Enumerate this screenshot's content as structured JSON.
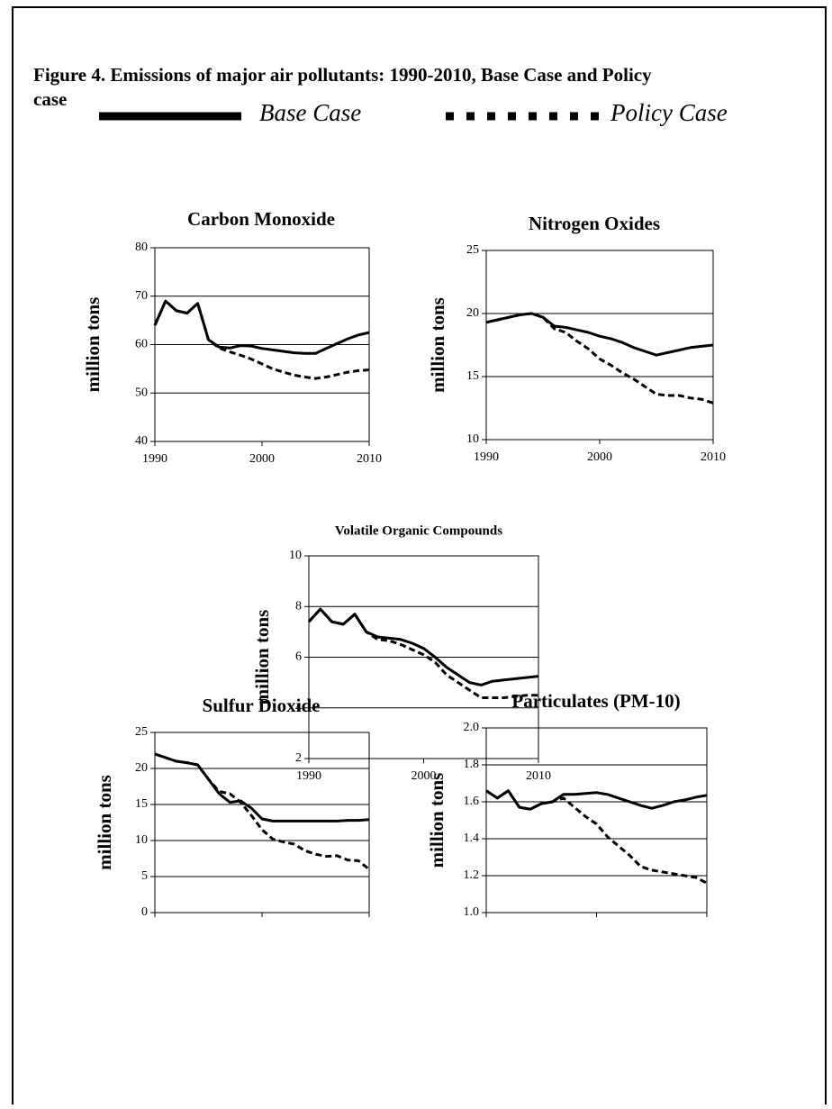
{
  "title": "Figure 4. Emissions of major air pollutants: 1990-2010, Base Case and Policy case",
  "legend": [
    {
      "name": "Base Case",
      "style": "solid"
    },
    {
      "name": "Policy Case",
      "style": "dashed"
    }
  ],
  "chart_data": [
    {
      "type": "line",
      "title": "Carbon Monoxide",
      "y_label": "million tons",
      "x": [
        1990,
        1991,
        1992,
        1993,
        1994,
        1995,
        1996,
        1997,
        1998,
        1999,
        2000,
        2001,
        2002,
        2003,
        2004,
        2005,
        2006,
        2007,
        2008,
        2009,
        2010
      ],
      "xlim": [
        1990,
        2010
      ],
      "xticks": [
        1990,
        2000,
        2010
      ],
      "ylim": [
        40,
        80
      ],
      "yticks": [
        40,
        50,
        60,
        70,
        80
      ],
      "grid": true,
      "series": [
        {
          "style": "solid",
          "values": [
            64,
            69,
            67,
            66.5,
            68.5,
            61,
            59.5,
            59.3,
            59.8,
            59.7,
            59.2,
            58.9,
            58.6,
            58.3,
            58.2,
            58.2,
            59.2,
            60.2,
            61.2,
            62,
            62.5
          ]
        },
        {
          "style": "dashed",
          "values": [
            64,
            69,
            67,
            66.5,
            68.5,
            61,
            59.3,
            58.5,
            57.8,
            57,
            56,
            55,
            54.3,
            53.7,
            53.3,
            53,
            53.3,
            53.8,
            54.3,
            54.6,
            54.8
          ]
        }
      ]
    },
    {
      "type": "line",
      "title": "Nitrogen Oxides",
      "y_label": "million tons",
      "x": [
        1990,
        1991,
        1992,
        1993,
        1994,
        1995,
        1996,
        1997,
        1998,
        1999,
        2000,
        2001,
        2002,
        2003,
        2004,
        2005,
        2006,
        2007,
        2008,
        2009,
        2010
      ],
      "xlim": [
        1990,
        2010
      ],
      "xticks": [
        1990,
        2000,
        2010
      ],
      "ylim": [
        10,
        25
      ],
      "yticks": [
        10,
        15,
        20,
        25
      ],
      "grid": true,
      "series": [
        {
          "style": "solid",
          "values": [
            19.3,
            19.5,
            19.7,
            19.9,
            20.0,
            19.7,
            19.0,
            18.9,
            18.7,
            18.5,
            18.2,
            18.0,
            17.7,
            17.3,
            17.0,
            16.7,
            16.9,
            17.1,
            17.3,
            17.4,
            17.5
          ]
        },
        {
          "style": "dashed",
          "values": [
            19.3,
            19.5,
            19.7,
            19.9,
            20.0,
            19.7,
            18.8,
            18.5,
            17.8,
            17.2,
            16.4,
            15.9,
            15.3,
            14.8,
            14.2,
            13.6,
            13.5,
            13.5,
            13.3,
            13.2,
            12.9
          ]
        }
      ]
    },
    {
      "type": "line",
      "title": "Volatile Organic Compounds",
      "y_label": "million tons",
      "x": [
        1990,
        1991,
        1992,
        1993,
        1994,
        1995,
        1996,
        1997,
        1998,
        1999,
        2000,
        2001,
        2002,
        2003,
        2004,
        2005,
        2006,
        2007,
        2008,
        2009,
        2010
      ],
      "xlim": [
        1990,
        2010
      ],
      "xticks": [
        1990,
        2000,
        2010
      ],
      "ylim": [
        2,
        10
      ],
      "yticks": [
        2,
        4,
        6,
        8,
        10
      ],
      "grid": true,
      "series": [
        {
          "style": "solid",
          "values": [
            7.4,
            7.9,
            7.4,
            7.3,
            7.7,
            7.0,
            6.8,
            6.75,
            6.7,
            6.55,
            6.35,
            6.0,
            5.6,
            5.3,
            5.0,
            4.9,
            5.05,
            5.1,
            5.15,
            5.2,
            5.25
          ]
        },
        {
          "style": "dashed",
          "values": [
            7.4,
            7.9,
            7.4,
            7.3,
            7.7,
            7.0,
            6.7,
            6.65,
            6.5,
            6.3,
            6.1,
            5.8,
            5.3,
            5.0,
            4.7,
            4.4,
            4.4,
            4.4,
            4.45,
            4.5,
            4.5
          ]
        }
      ]
    },
    {
      "type": "line",
      "title": "Sulfur Dioxide",
      "y_label": "million tons",
      "x": [
        1990,
        1991,
        1992,
        1993,
        1994,
        1995,
        1996,
        1997,
        1998,
        1999,
        2000,
        2001,
        2002,
        2003,
        2004,
        2005,
        2006,
        2007,
        2008,
        2009,
        2010
      ],
      "xlim": [
        1990,
        2010
      ],
      "ylim": [
        0,
        25
      ],
      "yticks": [
        0,
        5,
        10,
        15,
        20,
        25
      ],
      "grid": true,
      "series": [
        {
          "style": "solid",
          "values": [
            22,
            21.5,
            21.0,
            20.8,
            20.5,
            18.5,
            16.5,
            15.3,
            15.5,
            14.5,
            13.0,
            12.7,
            12.7,
            12.7,
            12.7,
            12.7,
            12.7,
            12.7,
            12.8,
            12.8,
            12.9
          ]
        },
        {
          "style": "dashed",
          "values": [
            22,
            21.5,
            21.0,
            20.8,
            20.5,
            18.5,
            16.8,
            16.5,
            15.3,
            13.5,
            11.5,
            10.2,
            9.8,
            9.5,
            8.6,
            8.1,
            7.8,
            7.9,
            7.3,
            7.2,
            6.0
          ]
        }
      ]
    },
    {
      "type": "line",
      "title": "Particulates (PM-10)",
      "y_label": "million tons",
      "x": [
        1990,
        1991,
        1992,
        1993,
        1994,
        1995,
        1996,
        1997,
        1998,
        1999,
        2000,
        2001,
        2002,
        2003,
        2004,
        2005,
        2006,
        2007,
        2008,
        2009,
        2010
      ],
      "xlim": [
        1990,
        2010
      ],
      "ylim": [
        1.0,
        2.0
      ],
      "yticks": [
        {
          "value": 1.0,
          "label": "1.0"
        },
        1.2,
        1.4,
        1.6,
        1.8,
        {
          "value": 2.0,
          "label": "2.0"
        }
      ],
      "grid": true,
      "series": [
        {
          "style": "solid",
          "values": [
            1.66,
            1.62,
            1.66,
            1.57,
            1.56,
            1.59,
            1.6,
            1.64,
            1.64,
            1.645,
            1.65,
            1.64,
            1.62,
            1.6,
            1.58,
            1.565,
            1.58,
            1.6,
            1.61,
            1.625,
            1.635
          ]
        },
        {
          "style": "dashed",
          "values": [
            1.66,
            1.62,
            1.66,
            1.57,
            1.56,
            1.59,
            1.6,
            1.62,
            1.57,
            1.52,
            1.48,
            1.41,
            1.36,
            1.31,
            1.25,
            1.23,
            1.22,
            1.21,
            1.2,
            1.19,
            1.16
          ]
        }
      ]
    }
  ]
}
